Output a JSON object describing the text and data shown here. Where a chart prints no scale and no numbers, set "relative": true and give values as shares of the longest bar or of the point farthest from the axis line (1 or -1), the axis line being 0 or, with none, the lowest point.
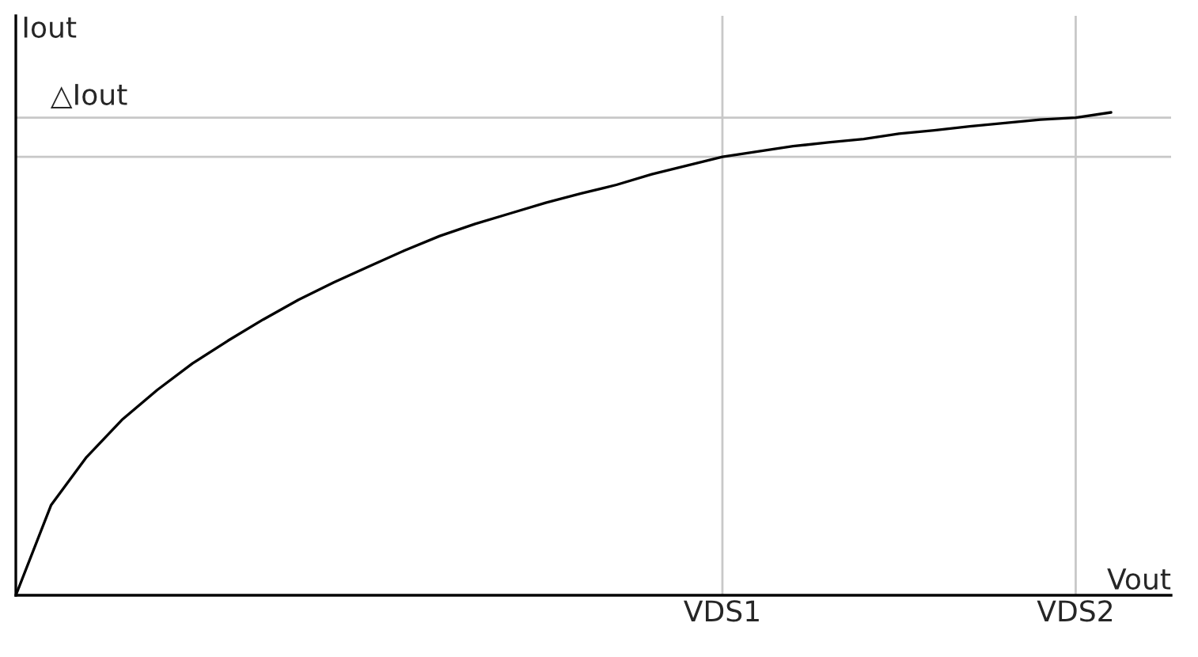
{
  "chart_data": {
    "type": "line",
    "relative": true,
    "xlabel": "Vout",
    "ylabel": "Iout",
    "categories": [
      null,
      null,
      null,
      null,
      null,
      null,
      null,
      null,
      null,
      null,
      null,
      null,
      null,
      null,
      null,
      null,
      null,
      null,
      null,
      null,
      "VDS1",
      null,
      null,
      null,
      null,
      null,
      null,
      null,
      null,
      null,
      "VDS2",
      null
    ],
    "series": [
      {
        "color": "#000000",
        "values": [
          0,
          0.187,
          0.286,
          0.363,
          0.425,
          0.48,
          0.527,
          0.571,
          0.612,
          0.648,
          0.681,
          0.714,
          0.744,
          0.769,
          0.791,
          0.813,
          0.832,
          0.85,
          0.872,
          0.89,
          0.908,
          0.919,
          0.93,
          0.938,
          0.945,
          0.956,
          0.963,
          0.971,
          0.978,
          0.985,
          0.989,
          1.0
        ]
      }
    ],
    "ref_lines": [
      {
        "axis": "y",
        "value": 0.908,
        "color": "#c8c8c8"
      },
      {
        "axis": "y",
        "value": 0.989,
        "color": "#c8c8c8"
      },
      {
        "axis": "x",
        "value": "VDS1",
        "color": "#c8c8c8"
      },
      {
        "axis": "x",
        "value": "VDS2",
        "color": "#c8c8c8"
      }
    ],
    "annotations": [
      "△Iout"
    ],
    "tick_labels": "x",
    "marker": "none",
    "line_style": "solid"
  }
}
